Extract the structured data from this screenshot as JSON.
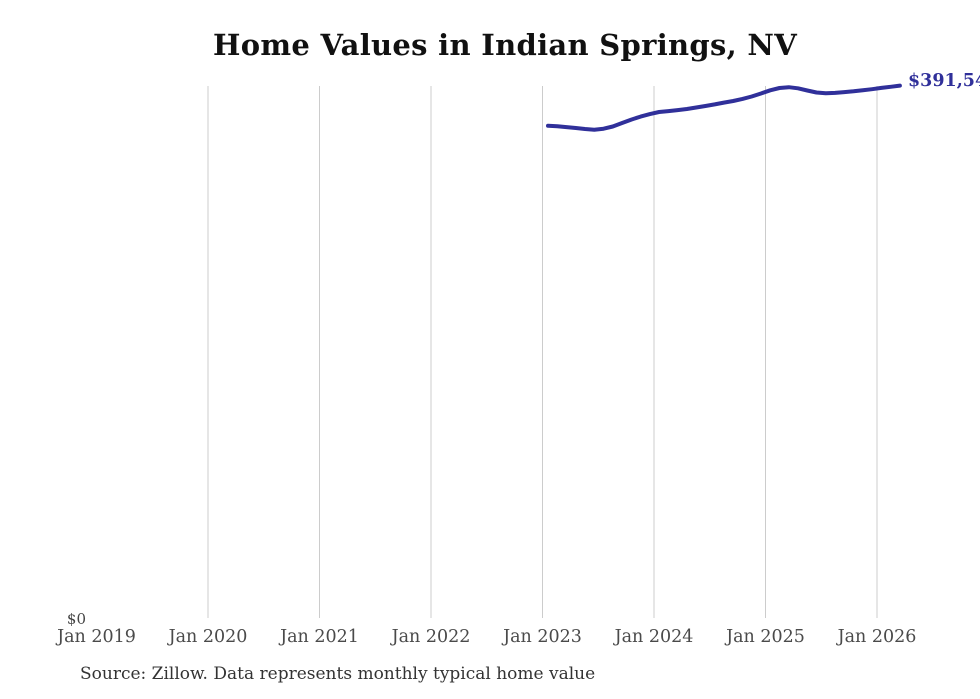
{
  "page": {
    "title": "Home Values in Indian Springs, NV",
    "source_note": "Source: Zillow. Data represents monthly typical home value"
  },
  "axes": {
    "y_zero_label": "$0",
    "x_tick_labels": [
      "Jan 2019",
      "Jan 2020",
      "Jan 2021",
      "Jan 2022",
      "Jan 2023",
      "Jan 2024",
      "Jan 2025",
      "Jan 2026"
    ]
  },
  "annotations": {
    "end_value_label": "$391,54"
  },
  "colors": {
    "line": "#30309a",
    "gridline": "#cccccc",
    "title_text": "#111111",
    "tick_text": "#4a4a4a",
    "source_text": "#333333",
    "end_label_text": "#30309a"
  },
  "chart_data": {
    "type": "line",
    "title": "Home Values in Indian Springs, NV",
    "xlabel": "",
    "ylabel": "",
    "series_name": "Monthly typical home value",
    "x": [
      "2023-01",
      "2023-02",
      "2023-03",
      "2023-04",
      "2023-05",
      "2023-06",
      "2023-07",
      "2023-08",
      "2023-09",
      "2023-10",
      "2023-11",
      "2023-12",
      "2024-01",
      "2024-02",
      "2024-03",
      "2024-04",
      "2024-05",
      "2024-06",
      "2024-07",
      "2024-08",
      "2024-09",
      "2024-10",
      "2024-11",
      "2024-12",
      "2025-01",
      "2025-02",
      "2025-03",
      "2025-04",
      "2025-05",
      "2025-06",
      "2025-07",
      "2025-08",
      "2025-09",
      "2025-10",
      "2025-11",
      "2025-12",
      "2026-01",
      "2026-02",
      "2026-03"
    ],
    "values": [
      362000,
      361700,
      361100,
      360400,
      359700,
      359200,
      359900,
      361500,
      364100,
      366600,
      368800,
      370600,
      372100,
      372800,
      373500,
      374300,
      375400,
      376500,
      377700,
      379000,
      380200,
      381700,
      383500,
      385700,
      388000,
      389700,
      390300,
      389500,
      387900,
      386400,
      385800,
      386100,
      386700,
      387300,
      388000,
      388800,
      389800,
      390600,
      391500
    ],
    "x_tick_labels": [
      "Jan 2019",
      "Jan 2020",
      "Jan 2021",
      "Jan 2022",
      "Jan 2023",
      "Jan 2024",
      "Jan 2025",
      "Jan 2026"
    ],
    "ylim": [
      0,
      400000
    ],
    "grid": "vertical-only, no gridline at Jan 2019",
    "legend": "none",
    "end_label": "$391,54",
    "source": "Source: Zillow. Data represents monthly typical home value"
  }
}
